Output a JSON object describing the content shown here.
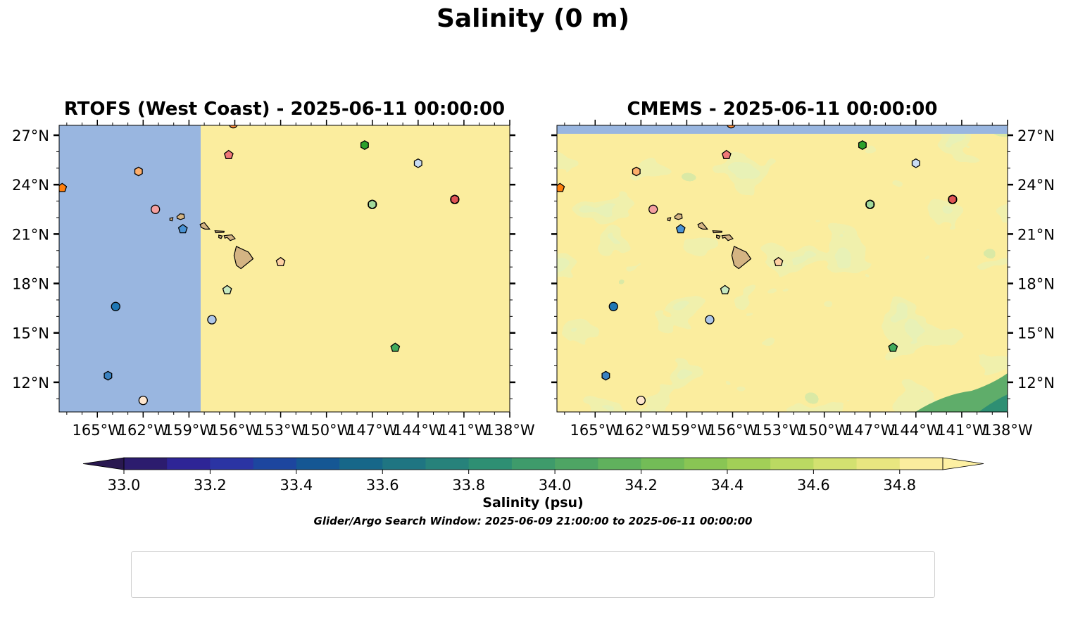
{
  "figure": {
    "title": "Salinity (0 m)",
    "search_window": "Glider/Argo Search Window: 2025-06-09 21:00:00 to 2025-06-11 00:00:00"
  },
  "chart_data": [
    {
      "type": "heatmap",
      "title": "RTOFS (West Coast) - 2025-06-11 00:00:00",
      "field": "Salinity (psu)",
      "extent_note": "model field covers only east of ~157.5°W; west of that is missing",
      "xlim": [
        -167.5,
        -138
      ],
      "ylim": [
        10.2,
        27.6
      ],
      "x_ticks": [
        "165°W",
        "162°W",
        "159°W",
        "156°W",
        "153°W",
        "150°W",
        "147°W",
        "144°W",
        "141°W",
        "138°W"
      ],
      "y_ticks": [
        "27°N",
        "24°N",
        "21°N",
        "18°N",
        "15°N",
        "12°N"
      ],
      "y_tick_side": "left",
      "grid": false
    },
    {
      "type": "heatmap",
      "title": "CMEMS - 2025-06-11 00:00:00",
      "field": "Salinity (psu)",
      "xlim": [
        -167.5,
        -138
      ],
      "ylim": [
        10.2,
        27.6
      ],
      "x_ticks": [
        "165°W",
        "162°W",
        "159°W",
        "156°W",
        "153°W",
        "150°W",
        "147°W",
        "144°W",
        "141°W",
        "138°W"
      ],
      "y_ticks": [
        "27°N",
        "24°N",
        "21°N",
        "18°N",
        "15°N",
        "12°N"
      ],
      "y_tick_side": "right",
      "grid": false
    }
  ],
  "colorbar": {
    "label": "Salinity (psu)",
    "range": [
      33.0,
      34.9
    ],
    "step": 0.1,
    "extend": "both",
    "ticks": [
      "33.0",
      "33.2",
      "33.4",
      "33.6",
      "33.8",
      "34.0",
      "34.2",
      "34.4",
      "34.6",
      "34.8"
    ],
    "colors": [
      "#2c1c6e",
      "#2e2596",
      "#2b34a3",
      "#1d469f",
      "#155794",
      "#176789",
      "#1f7582",
      "#27827b",
      "#2e8f73",
      "#3e9b6b",
      "#4ea564",
      "#60b15d",
      "#73bc57",
      "#89c554",
      "#a2cf57",
      "#bbd962",
      "#d3e170",
      "#e8e680",
      "#fbed9e"
    ],
    "under_color": "#291850",
    "over_color": "#fdf0a3"
  },
  "palette": {
    "missing": "#99b6e0",
    "land": "#d4b483",
    "coast": "#000000"
  },
  "platforms": [
    {
      "id": "2903452",
      "marker": "circle",
      "color": "#1f77b4",
      "lon": -163.8,
      "lat": 16.6
    },
    {
      "id": "3902374",
      "marker": "hexagon",
      "color": "#3a82c1",
      "lon": -164.3,
      "lat": 12.4
    },
    {
      "id": "3902559",
      "marker": "pentagon",
      "color": "#4a93d4",
      "lon": -159.4,
      "lat": 21.3
    },
    {
      "id": "4902948",
      "marker": "circle",
      "color": "#aec7e8",
      "lon": -157.5,
      "lat": 15.8
    },
    {
      "id": "4903321",
      "marker": "hexagon",
      "color": "#c9dcf3",
      "lon": -144.0,
      "lat": 25.3
    },
    {
      "id": "4903322",
      "marker": "pentagon",
      "color": "#ff7f0e",
      "lon": -167.3,
      "lat": 23.8
    },
    {
      "id": "4903503",
      "marker": "circle",
      "color": "#fd8d3c",
      "lon": -156.1,
      "lat": 27.7
    },
    {
      "id": "4903507",
      "marker": "hexagon",
      "color": "#fdae6b",
      "lon": -162.3,
      "lat": 24.8
    },
    {
      "id": "5905272",
      "marker": "pentagon",
      "color": "#fdd0a2",
      "lon": -153.0,
      "lat": 19.3
    },
    {
      "id": "5906095",
      "marker": "circle",
      "color": "#fee6ce",
      "lon": -162.0,
      "lat": 10.9
    },
    {
      "id": "5906369",
      "marker": "hexagon",
      "color": "#2ca02c",
      "lon": -147.5,
      "lat": 26.4
    },
    {
      "id": "5906471",
      "marker": "pentagon",
      "color": "#41ab5d",
      "lon": -145.5,
      "lat": 14.1
    },
    {
      "id": "5906514",
      "marker": "circle",
      "color": "#74c476",
      "lon": -147.0,
      "lat": 22.8
    },
    {
      "id": "5906529",
      "marker": "hexagon",
      "color": "#a1d99b",
      "lon": -147.0,
      "lat": 22.8
    },
    {
      "id": "5906757",
      "marker": "pentagon",
      "color": "#c7e9c0",
      "lon": -156.5,
      "lat": 17.6
    },
    {
      "id": "5906811",
      "marker": "circle",
      "color": "#d62728",
      "lon": -141.6,
      "lat": 23.1
    },
    {
      "id": "5906854",
      "marker": "hexagon",
      "color": "#e05555",
      "lon": -141.6,
      "lat": 23.1
    },
    {
      "id": "7900877",
      "marker": "pentagon",
      "color": "#f07878",
      "lon": -156.4,
      "lat": 25.8
    },
    {
      "id": "7901106",
      "marker": "circle",
      "color": "#f4a0a0",
      "lon": -161.2,
      "lat": 22.5
    }
  ]
}
